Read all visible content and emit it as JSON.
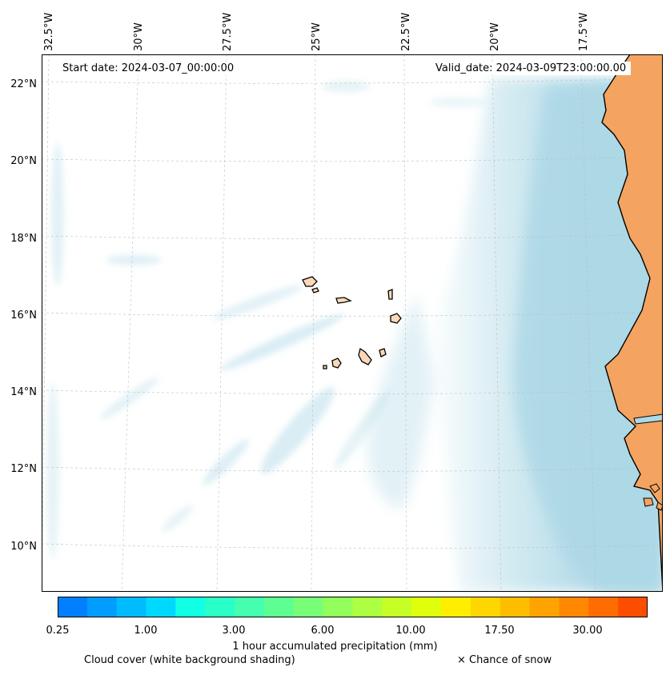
{
  "map": {
    "start_date": "Start date: 2024-03-07_00:00:00",
    "valid_date": "Valid_date: 2024-03-09T23:00:00.00",
    "lon_labels": [
      "32.5°W",
      "30°W",
      "27.5°W",
      "25°W",
      "22.5°W",
      "20°W",
      "17.5°W"
    ],
    "lat_labels": [
      "22°N",
      "20°N",
      "18°N",
      "16°N",
      "14°N",
      "12°N",
      "10°N"
    ],
    "land_color": "#f4a460",
    "island_color": "#fcd8b8",
    "cloud_color": "#add8e6"
  },
  "colorbar": {
    "ticks": [
      "0.25",
      "1.00",
      "3.00",
      "6.00",
      "10.00",
      "17.50",
      "30.00"
    ],
    "label": "1 hour accumulated precipitation (mm)",
    "colors": [
      "#0080ff",
      "#009dff",
      "#00bbff",
      "#00d9ff",
      "#11ffe4",
      "#2bffc8",
      "#44ffad",
      "#5eff92",
      "#78ff77",
      "#92ff5c",
      "#acff41",
      "#c6ff26",
      "#e0ff0c",
      "#ffee00",
      "#ffd600",
      "#ffbd00",
      "#ffa300",
      "#ff8800",
      "#ff6c00",
      "#ff4d00"
    ]
  },
  "legend": {
    "cloud_cover": "Cloud cover (white background shading)",
    "snow": "× Chance of snow"
  }
}
